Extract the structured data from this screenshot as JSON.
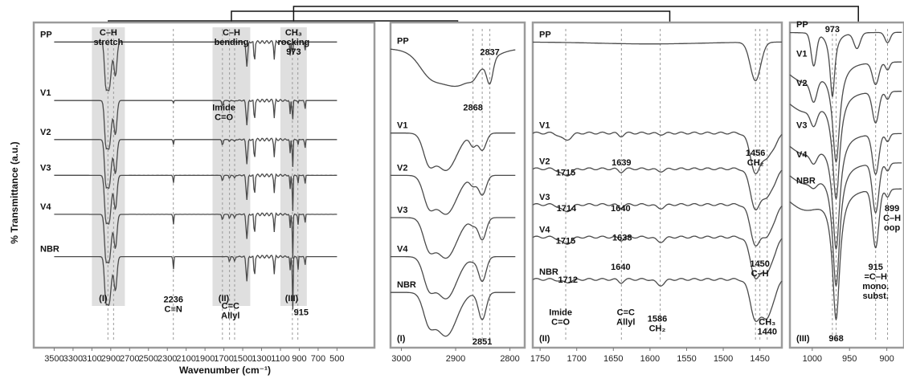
{
  "y_axis_label": "% Transmittance (a.u.)",
  "x_axis_label": "Wavenumber (cm⁻¹)",
  "chart_data": [
    {
      "id": "full",
      "type": "line",
      "xlim": [
        3500,
        500
      ],
      "x_ticks": [
        3500,
        3300,
        3100,
        2900,
        2700,
        2500,
        2300,
        2100,
        1900,
        1700,
        1500,
        1300,
        1100,
        900,
        700,
        500
      ],
      "series": [
        {
          "name": "PP",
          "baseline": 0.06
        },
        {
          "name": "V1",
          "baseline": 0.24
        },
        {
          "name": "V2",
          "baseline": 0.36
        },
        {
          "name": "V3",
          "baseline": 0.47
        },
        {
          "name": "V4",
          "baseline": 0.59
        },
        {
          "name": "NBR",
          "baseline": 0.72
        }
      ],
      "bands": [
        {
          "from": 3100,
          "to": 2750,
          "label": "(I)",
          "title": [
            "C–H",
            "stretch"
          ]
        },
        {
          "from": 1820,
          "to": 1420,
          "label": "(II)",
          "title": [
            "C–H",
            "bending"
          ]
        },
        {
          "from": 1100,
          "to": 820,
          "label": "(III)",
          "title": [
            "CH₃",
            "rocking",
            "973"
          ]
        }
      ],
      "dashed_x": [
        2930,
        2870,
        2236,
        1715,
        1640,
        1586,
        973,
        915
      ],
      "annotations": [
        {
          "x": 1700,
          "y": 0.27,
          "lines": [
            "Imide",
            "C=O"
          ]
        },
        {
          "x": 2236,
          "y": 0.86,
          "lines": [
            "2236",
            "C≡N"
          ]
        },
        {
          "x": 1630,
          "y": 0.88,
          "lines": [
            "C=C",
            "Allyl"
          ]
        },
        {
          "x": 880,
          "y": 0.9,
          "lines": [
            "915"
          ]
        }
      ]
    },
    {
      "id": "I",
      "type": "line",
      "panel_label": "(I)",
      "xlim": [
        3020,
        2790
      ],
      "x_ticks": [
        3000,
        2900,
        2800
      ],
      "series": [
        {
          "name": "PP",
          "baseline": 0.08
        },
        {
          "name": "V1",
          "baseline": 0.34
        },
        {
          "name": "V2",
          "baseline": 0.47
        },
        {
          "name": "V3",
          "baseline": 0.6
        },
        {
          "name": "V4",
          "baseline": 0.72
        },
        {
          "name": "NBR",
          "baseline": 0.83
        }
      ],
      "dashed_x": [
        2868,
        2851,
        2837
      ],
      "annotations": [
        {
          "x": 2837,
          "y": 0.1,
          "lines": [
            "2837"
          ]
        },
        {
          "x": 2868,
          "y": 0.27,
          "lines": [
            "2868"
          ]
        },
        {
          "x": 2851,
          "y": 0.99,
          "lines": [
            "2851"
          ]
        }
      ]
    },
    {
      "id": "II",
      "type": "line",
      "panel_label": "(II)",
      "xlim": [
        1760,
        1420
      ],
      "x_ticks": [
        1750,
        1700,
        1650,
        1600,
        1550,
        1500,
        1450
      ],
      "series": [
        {
          "name": "PP",
          "baseline": 0.06
        },
        {
          "name": "V1",
          "baseline": 0.34
        },
        {
          "name": "V2",
          "baseline": 0.45
        },
        {
          "name": "V3",
          "baseline": 0.56
        },
        {
          "name": "V4",
          "baseline": 0.66
        },
        {
          "name": "NBR",
          "baseline": 0.79
        }
      ],
      "dashed_x": [
        1715,
        1639,
        1586,
        1456,
        1450,
        1440
      ],
      "annotations": [
        {
          "x": 1715,
          "y": 0.47,
          "lines": [
            "1715"
          ]
        },
        {
          "x": 1639,
          "y": 0.44,
          "lines": [
            "1639"
          ]
        },
        {
          "x": 1714,
          "y": 0.58,
          "lines": [
            "1714"
          ]
        },
        {
          "x": 1640,
          "y": 0.58,
          "lines": [
            "1640"
          ]
        },
        {
          "x": 1715,
          "y": 0.68,
          "lines": [
            "1715"
          ]
        },
        {
          "x": 1638,
          "y": 0.67,
          "lines": [
            "1638"
          ]
        },
        {
          "x": 1712,
          "y": 0.8,
          "lines": [
            "1712"
          ]
        },
        {
          "x": 1640,
          "y": 0.76,
          "lines": [
            "1640"
          ]
        },
        {
          "x": 1456,
          "y": 0.41,
          "lines": [
            "1456",
            "CH₂"
          ]
        },
        {
          "x": 1450,
          "y": 0.75,
          "lines": [
            "1450",
            "C–H"
          ]
        },
        {
          "x": 1440,
          "y": 0.93,
          "lines": [
            "CH₃",
            "1440"
          ]
        },
        {
          "x": 1722,
          "y": 0.9,
          "lines": [
            "Imide",
            "C=O"
          ]
        },
        {
          "x": 1633,
          "y": 0.9,
          "lines": [
            "C=C",
            "Allyl"
          ]
        },
        {
          "x": 1590,
          "y": 0.92,
          "lines": [
            "1586",
            "CH₂"
          ]
        }
      ]
    },
    {
      "id": "III",
      "type": "line",
      "panel_label": "(III)",
      "xlim": [
        1030,
        880
      ],
      "x_ticks": [
        1000,
        950,
        900
      ],
      "series": [
        {
          "name": "PP",
          "baseline": 0.03
        },
        {
          "name": "V1",
          "baseline": 0.12
        },
        {
          "name": "V2",
          "baseline": 0.21
        },
        {
          "name": "V3",
          "baseline": 0.34
        },
        {
          "name": "V4",
          "baseline": 0.43
        },
        {
          "name": "NBR",
          "baseline": 0.51
        }
      ],
      "dashed_x": [
        973,
        968,
        915,
        899
      ],
      "annotations": [
        {
          "x": 973,
          "y": 0.03,
          "lines": [
            "973"
          ]
        },
        {
          "x": 968,
          "y": 0.98,
          "lines": [
            "968"
          ]
        },
        {
          "x": 893,
          "y": 0.58,
          "lines": [
            "899",
            "C–H",
            "oop"
          ]
        },
        {
          "x": 915,
          "y": 0.76,
          "lines": [
            "915",
            "=C–H",
            "mono.",
            "subst."
          ]
        }
      ]
    }
  ]
}
